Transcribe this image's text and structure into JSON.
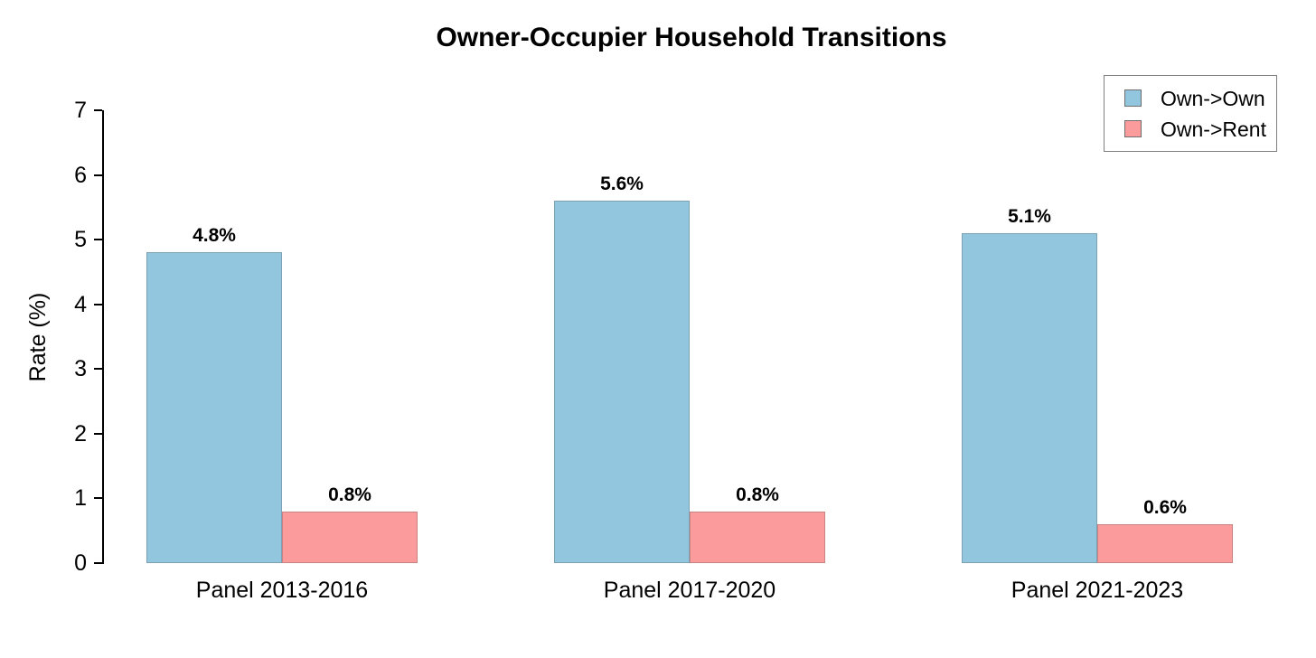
{
  "chart_data": {
    "type": "bar",
    "title": "Owner-Occupier Household Transitions",
    "xlabel": "",
    "ylabel": "Rate (%)",
    "ylim": [
      0,
      7
    ],
    "yticks": [
      0,
      1,
      2,
      3,
      4,
      5,
      6,
      7
    ],
    "grid": false,
    "legend_position": "top-right",
    "categories": [
      "Panel 2013-2016",
      "Panel 2017-2020",
      "Panel 2021-2023"
    ],
    "series": [
      {
        "name": "Own->Own",
        "color": "#92C5DE",
        "values": [
          4.8,
          5.6,
          5.1
        ],
        "value_labels": [
          "4.8%",
          "5.6%",
          "5.1%"
        ]
      },
      {
        "name": "Own->Rent",
        "color": "#FB9B9B",
        "values": [
          0.8,
          0.8,
          0.6
        ],
        "value_labels": [
          "0.8%",
          "0.8%",
          "0.6%"
        ]
      }
    ]
  }
}
